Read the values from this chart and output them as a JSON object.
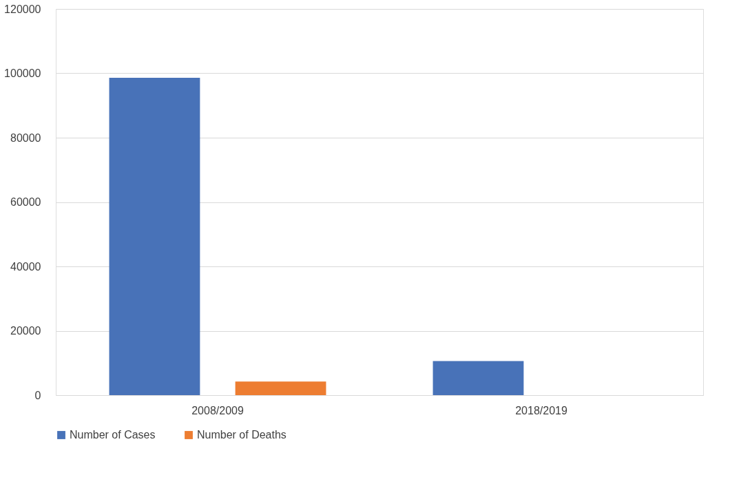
{
  "chart_data": {
    "type": "bar",
    "categories": [
      "2008/2009",
      "2018/2019"
    ],
    "series": [
      {
        "name": "Number of Cases",
        "color": "#4872b8",
        "values": [
          98600,
          10600
        ]
      },
      {
        "name": "Number of Deaths",
        "color": "#ed7d31",
        "values": [
          4200,
          null
        ]
      }
    ],
    "ylim": [
      0,
      120000
    ],
    "yticks": [
      0,
      20000,
      40000,
      60000,
      80000,
      100000,
      120000
    ],
    "grid": "y",
    "legend": "bottom"
  }
}
